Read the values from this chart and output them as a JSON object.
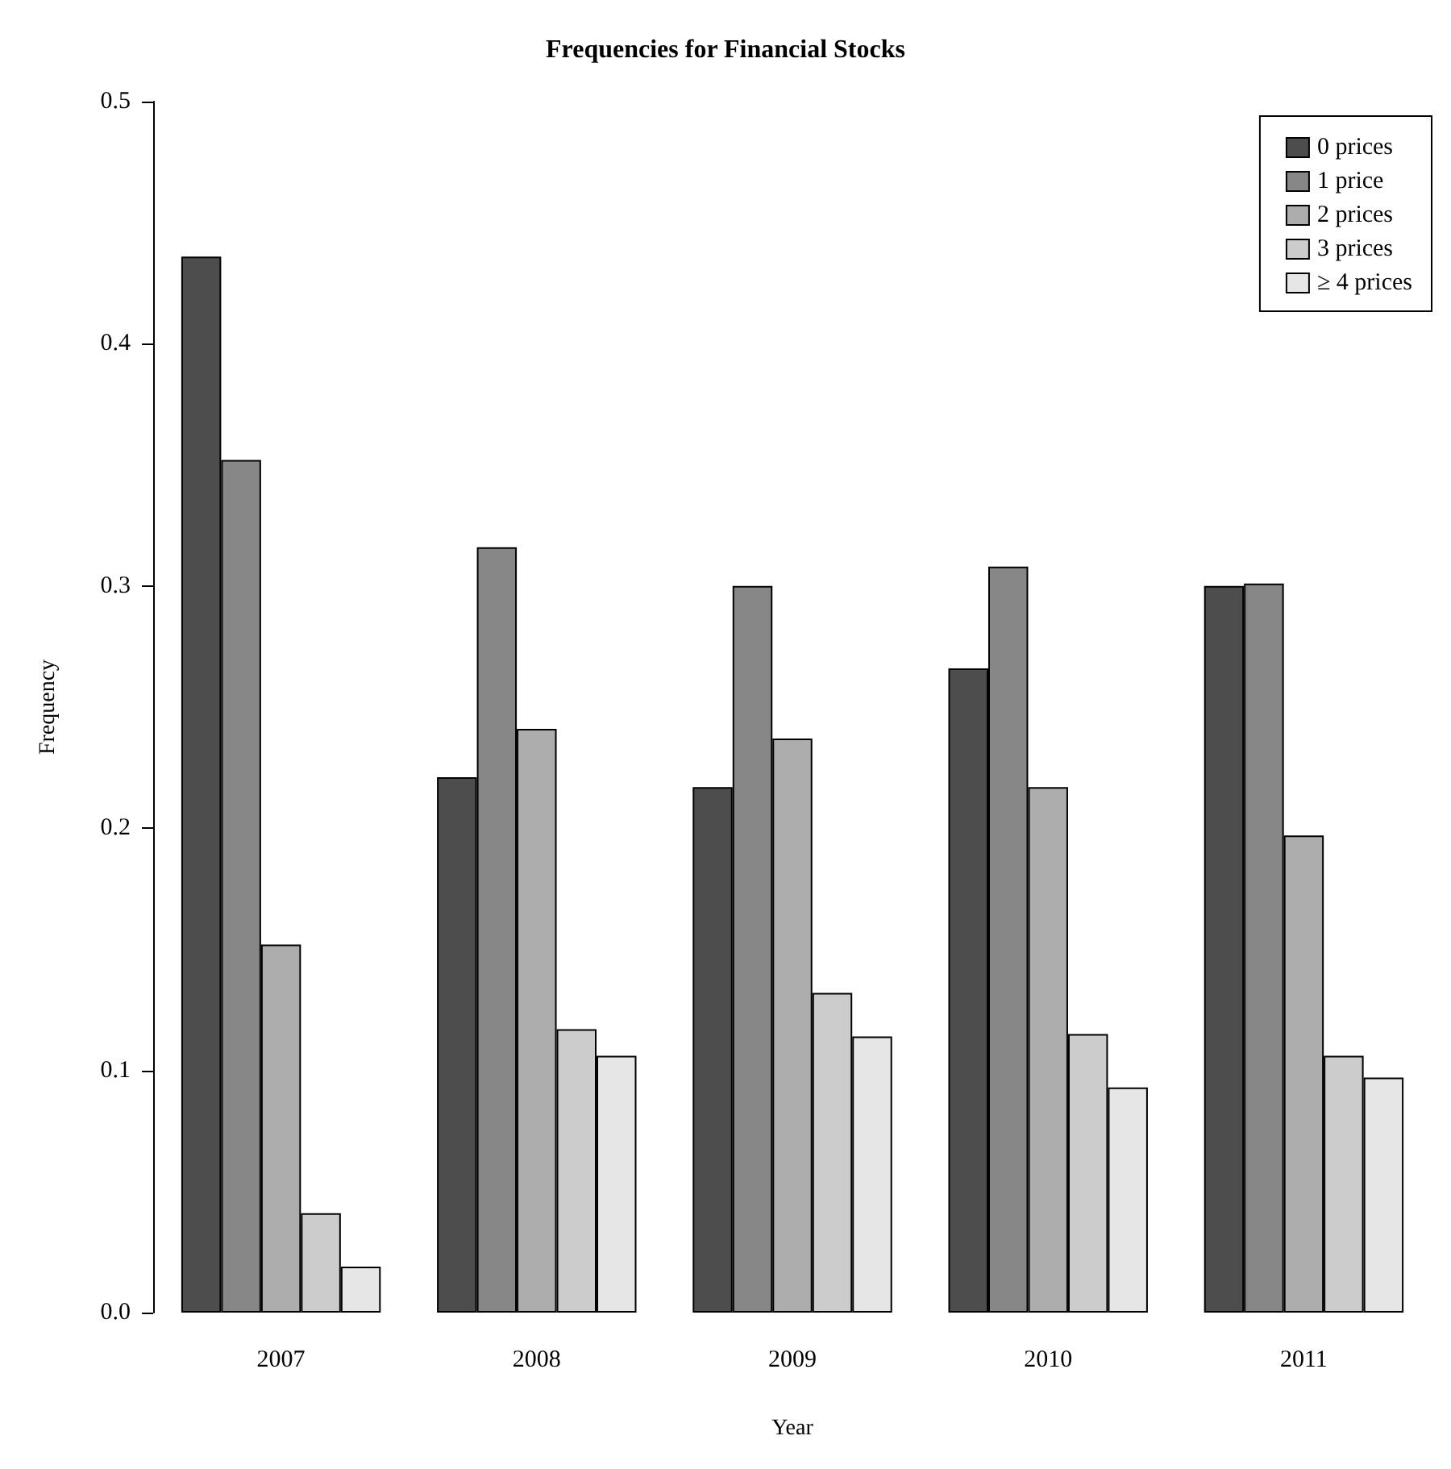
{
  "chart_data": {
    "type": "bar",
    "title": "Frequencies for Financial Stocks",
    "xlabel": "Year",
    "ylabel": "Frequency",
    "categories": [
      "2007",
      "2008",
      "2009",
      "2010",
      "2011"
    ],
    "series": [
      {
        "name": "0 prices",
        "color": "#4d4d4d",
        "values": [
          0.436,
          0.221,
          0.217,
          0.266,
          0.3
        ]
      },
      {
        "name": "1 price",
        "color": "#878787",
        "values": [
          0.352,
          0.316,
          0.3,
          0.308,
          0.301
        ]
      },
      {
        "name": "2 prices",
        "color": "#adadad",
        "values": [
          0.152,
          0.241,
          0.237,
          0.217,
          0.197
        ]
      },
      {
        "name": "3 prices",
        "color": "#cccccc",
        "values": [
          0.041,
          0.117,
          0.132,
          0.115,
          0.106
        ]
      },
      {
        "name": "≥ 4 prices",
        "color": "#e6e6e6",
        "values": [
          0.019,
          0.106,
          0.114,
          0.093,
          0.097
        ]
      }
    ],
    "ylim": [
      0,
      0.5
    ],
    "yticks": [
      {
        "value": 0,
        "label": "0.0"
      },
      0.1,
      0.2,
      0.3,
      0.4,
      0.5
    ],
    "grid": false,
    "legend": "top right"
  }
}
